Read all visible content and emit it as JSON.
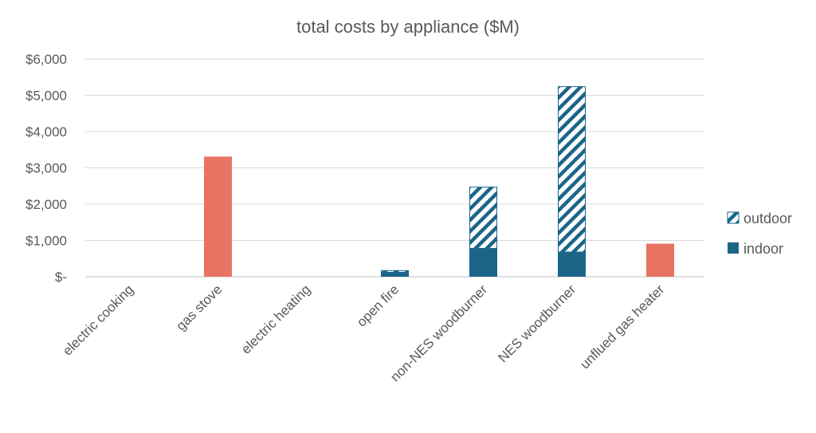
{
  "chart_data": {
    "type": "bar",
    "stacked": true,
    "title": "total costs by  appliance ($M)",
    "xlabel": "",
    "ylabel": "",
    "ylim": [
      0,
      6000
    ],
    "yticks": [
      0,
      1000,
      2000,
      3000,
      4000,
      5000,
      6000
    ],
    "ytick_labels": [
      "$-",
      "$1,000",
      "$2,000",
      "$3,000",
      "$4,000",
      "$5,000",
      "$6,000"
    ],
    "grid": true,
    "legend_position": "right",
    "categories": [
      "electric cooking",
      "gas stove",
      "electric heating",
      "open fire",
      "non-NES woodburner",
      "NES woodburner",
      "unflued gas heater"
    ],
    "series": [
      {
        "name": "indoor",
        "color": "#1B6589",
        "pattern": "solid",
        "values": [
          0,
          0,
          0,
          110,
          770,
          670,
          0
        ],
        "highlight_color": "#E97363",
        "highlight_categories": [
          "gas stove",
          "unflued gas heater"
        ],
        "highlight_values": [
          0,
          3310,
          0,
          0,
          0,
          0,
          910
        ]
      },
      {
        "name": "outdoor",
        "color": "#1B6589",
        "pattern": "diagonal-stripes",
        "values": [
          0,
          0,
          0,
          70,
          1710,
          4580,
          0
        ]
      }
    ],
    "legend": [
      {
        "label": "outdoor",
        "pattern": "diagonal-stripes"
      },
      {
        "label": "indoor",
        "pattern": "solid"
      }
    ],
    "colors": {
      "indoor": "#1B6589",
      "outdoor_stripe": "#1B6589",
      "gas": "#E97363",
      "grid": "#D9D9D9",
      "axis_text": "#595959"
    }
  }
}
